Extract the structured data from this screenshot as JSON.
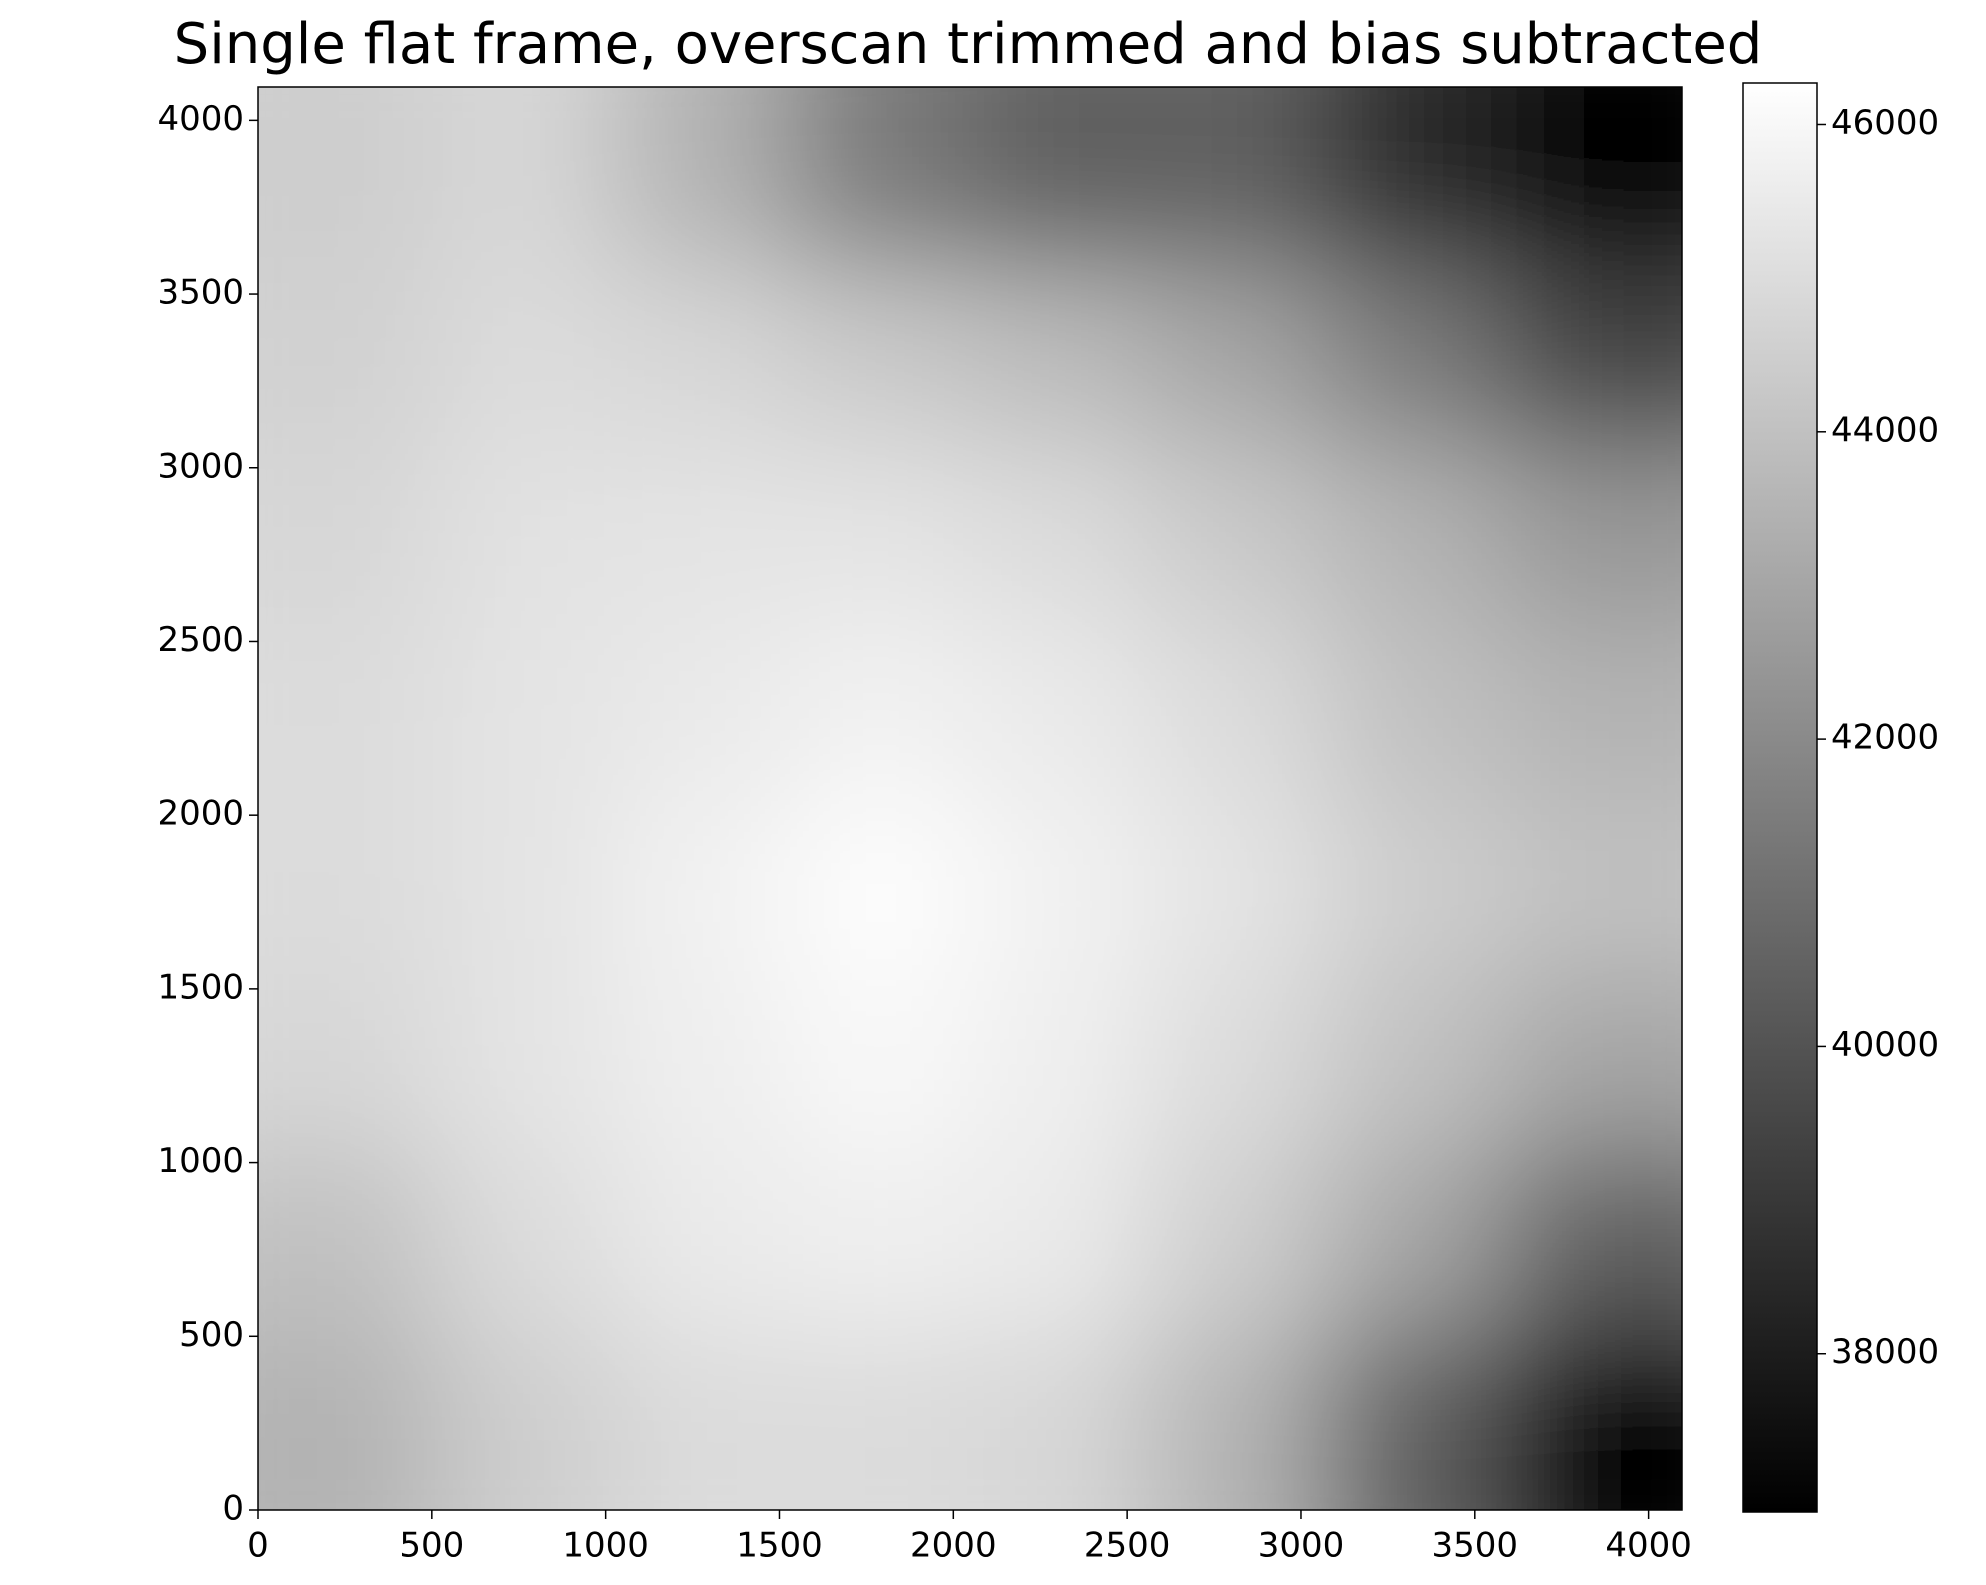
{
  "chart_data": {
    "type": "heatmap",
    "title": "Single flat frame, overscan trimmed and bias subtracted",
    "xlim": [
      0,
      4096
    ],
    "ylim": [
      0,
      4096
    ],
    "xticks": [
      0,
      500,
      1000,
      1500,
      2000,
      2500,
      3000,
      3500,
      4000
    ],
    "yticks": [
      0,
      500,
      1000,
      1500,
      2000,
      2500,
      3000,
      3500,
      4000
    ],
    "z": [
      [
        43500,
        44500,
        45000,
        45000,
        44800,
        43500,
        40500,
        37200
      ],
      [
        44000,
        45000,
        45500,
        45700,
        45500,
        44500,
        43000,
        40500
      ],
      [
        44800,
        45300,
        45700,
        46000,
        45700,
        45000,
        44000,
        43000
      ],
      [
        45000,
        45300,
        45800,
        46200,
        45800,
        45300,
        44500,
        44000
      ],
      [
        45000,
        45300,
        45500,
        45800,
        45500,
        45000,
        44000,
        43500
      ],
      [
        44800,
        45200,
        45300,
        45300,
        45000,
        44300,
        43500,
        42500
      ],
      [
        44600,
        45000,
        44800,
        44300,
        43800,
        43000,
        41500,
        39500
      ],
      [
        44500,
        44800,
        43500,
        41500,
        40500,
        40500,
        38500,
        37200
      ]
    ],
    "colormap": "gray",
    "clim": [
      36970,
      46270
    ],
    "cticks": [
      38000,
      40000,
      42000,
      44000,
      46000
    ]
  }
}
